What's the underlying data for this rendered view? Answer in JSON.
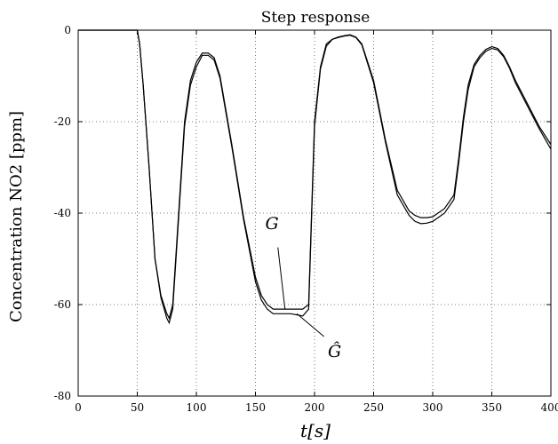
{
  "chart_data": {
    "type": "line",
    "title": "Step response",
    "xlabel": "t[s]",
    "ylabel": "Concentration NO2 [ppm]",
    "xlim": [
      0,
      400
    ],
    "ylim": [
      -80,
      0
    ],
    "xticks": [
      0,
      50,
      100,
      150,
      200,
      250,
      300,
      350,
      400
    ],
    "yticks": [
      0,
      -20,
      -40,
      -60,
      -80
    ],
    "grid": true,
    "annotations": [
      {
        "text": "G",
        "points_to": [
          175,
          -61
        ]
      },
      {
        "text": "Ĝ",
        "points_to": [
          185,
          -62
        ]
      }
    ],
    "series": [
      {
        "name": "G",
        "x": [
          0,
          50,
          52,
          55,
          60,
          65,
          70,
          75,
          77,
          80,
          85,
          90,
          95,
          100,
          105,
          110,
          115,
          120,
          130,
          140,
          150,
          155,
          160,
          165,
          170,
          180,
          190,
          195,
          200,
          205,
          210,
          215,
          220,
          225,
          230,
          235,
          240,
          250,
          260,
          270,
          280,
          285,
          290,
          295,
          300,
          310,
          318,
          322,
          326,
          330,
          335,
          340,
          345,
          350,
          355,
          360,
          365,
          370,
          380,
          390,
          400
        ],
        "y": [
          0,
          0,
          -3,
          -12,
          -30,
          -50,
          -58,
          -62,
          -63,
          -60,
          -40,
          -20,
          -11,
          -7,
          -5,
          -5,
          -6,
          -10,
          -25,
          -41,
          -54,
          -58,
          -60,
          -61,
          -61,
          -61,
          -61,
          -60,
          -20,
          -8,
          -3,
          -2,
          -1.5,
          -1.2,
          -1,
          -1.5,
          -3,
          -11,
          -24,
          -35,
          -39.5,
          -40.5,
          -41,
          -41,
          -40.8,
          -39,
          -36,
          -28,
          -19,
          -12,
          -7.5,
          -5.5,
          -4.2,
          -3.6,
          -4,
          -5.5,
          -8,
          -11,
          -16,
          -21,
          -25
        ]
      },
      {
        "name": "Ĝ",
        "x": [
          0,
          50,
          52,
          55,
          60,
          65,
          70,
          75,
          77,
          80,
          85,
          90,
          95,
          100,
          105,
          110,
          115,
          120,
          130,
          140,
          150,
          155,
          160,
          165,
          170,
          180,
          190,
          195,
          200,
          205,
          210,
          215,
          220,
          225,
          230,
          235,
          240,
          250,
          260,
          270,
          280,
          285,
          290,
          295,
          300,
          310,
          318,
          322,
          326,
          330,
          335,
          340,
          345,
          350,
          355,
          360,
          365,
          370,
          380,
          390,
          400
        ],
        "y": [
          0,
          0,
          -3,
          -12,
          -30,
          -50,
          -58.5,
          -63,
          -64,
          -61,
          -41,
          -21,
          -12,
          -8,
          -5.5,
          -5.5,
          -6.5,
          -10.5,
          -25.5,
          -41.5,
          -55,
          -59,
          -61,
          -62,
          -62,
          -62,
          -62.5,
          -61,
          -21,
          -8.5,
          -3.5,
          -2,
          -1.6,
          -1.3,
          -1.1,
          -1.6,
          -3.2,
          -11.5,
          -24.5,
          -36,
          -40.5,
          -41.8,
          -42.3,
          -42.2,
          -41.8,
          -40,
          -37,
          -29,
          -20,
          -13,
          -8,
          -6,
          -4.6,
          -4,
          -4.3,
          -5.8,
          -8.3,
          -11.5,
          -16.5,
          -21.5,
          -26
        ]
      }
    ]
  }
}
